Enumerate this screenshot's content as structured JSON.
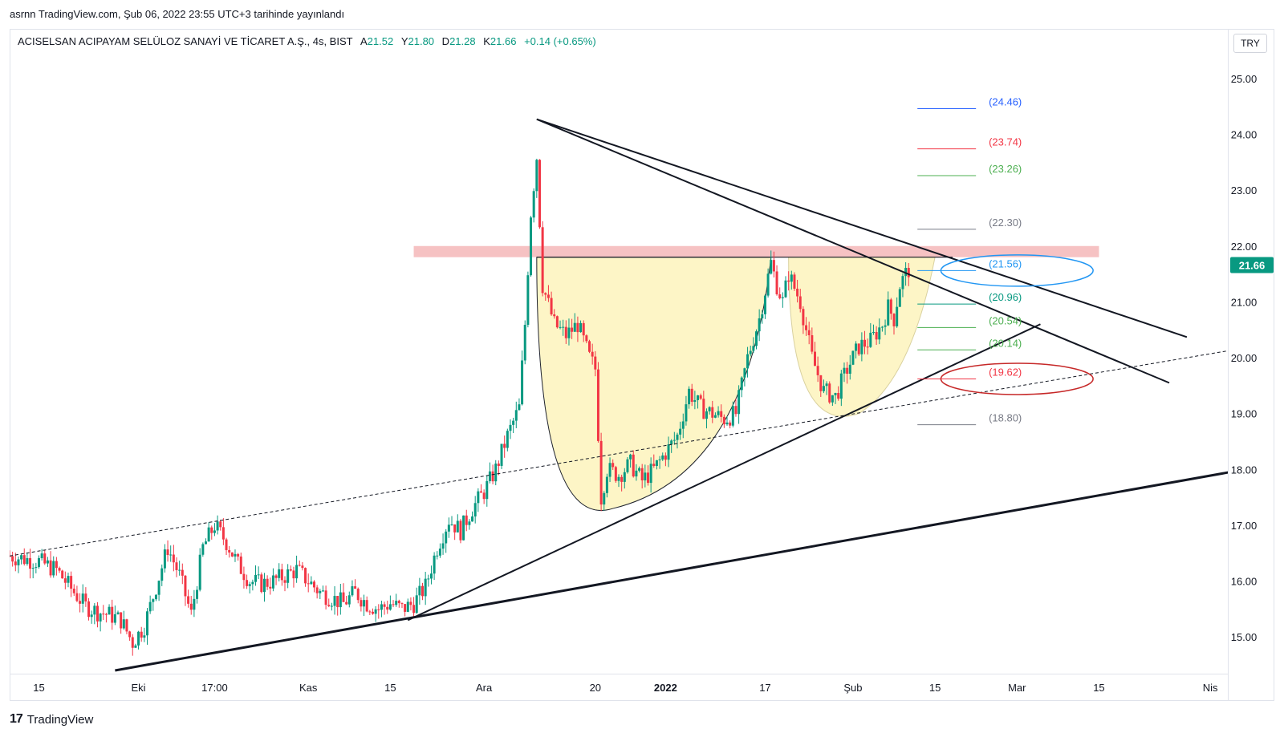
{
  "header": {
    "published": "asrnn TradingView.com, Şub 06, 2022 23:55 UTC+3 tarihinde yayınlandı"
  },
  "legend": {
    "symbol": "ACISELSAN ACIPAYAM SELÜLOZ SANAYİ VE TİCARET A.Ş., 4s, BIST",
    "open_label": "A",
    "open": "21.52",
    "high_label": "Y",
    "high": "21.80",
    "low_label": "D",
    "low": "21.28",
    "close_label": "K",
    "close": "21.66",
    "change": "+0.14 (+0.65%)"
  },
  "currency": "TRY",
  "footer": {
    "brand": "TradingView",
    "logo": "17"
  },
  "colors": {
    "up": "#089981",
    "down": "#f23645",
    "resistance_zone": "#f5b7b9",
    "pattern_fill": "#fdf5c4",
    "price_badge": "#089981",
    "level_blue": "#2962ff",
    "level_red": "#f23645",
    "level_green": "#4caf50",
    "level_gray": "#787b86",
    "ellipse_blue": "#2196f3",
    "ellipse_red": "#c62828"
  },
  "chart_data": {
    "type": "candlestick",
    "symbol": "ACISELSAN",
    "interval": "4s",
    "ylim": [
      14.4,
      25.4
    ],
    "y_ticks": [
      "25.00",
      "24.00",
      "23.00",
      "22.00",
      "21.00",
      "20.00",
      "19.00",
      "18.00",
      "17.00",
      "16.00",
      "15.00"
    ],
    "last_price": "21.66",
    "x_ticks": [
      {
        "t": 0,
        "label": "15"
      },
      {
        "t": 17,
        "label": "Eki"
      },
      {
        "t": 30,
        "label": "17:00"
      },
      {
        "t": 46,
        "label": "Kas"
      },
      {
        "t": 60,
        "label": "15"
      },
      {
        "t": 76,
        "label": "Ara"
      },
      {
        "t": 95,
        "label": "20"
      },
      {
        "t": 107,
        "label": "2022"
      },
      {
        "t": 124,
        "label": "17"
      },
      {
        "t": 139,
        "label": "Şub"
      },
      {
        "t": 153,
        "label": "15"
      },
      {
        "t": 167,
        "label": "Mar"
      },
      {
        "t": 181,
        "label": "15"
      },
      {
        "t": 200,
        "label": "Nis"
      }
    ],
    "x_range": [
      -5,
      203
    ],
    "price_path": [
      [
        -5,
        16.45
      ],
      [
        0,
        16.35
      ],
      [
        3,
        16.2
      ],
      [
        6,
        15.8
      ],
      [
        8,
        15.55
      ],
      [
        10,
        15.45
      ],
      [
        12,
        15.4
      ],
      [
        14,
        15.3
      ],
      [
        16,
        14.9
      ],
      [
        18,
        15.2
      ],
      [
        20,
        15.9
      ],
      [
        22,
        16.6
      ],
      [
        24,
        16.1
      ],
      [
        26,
        15.4
      ],
      [
        28,
        16.6
      ],
      [
        30,
        17.0
      ],
      [
        32,
        16.7
      ],
      [
        34,
        16.3
      ],
      [
        36,
        16.0
      ],
      [
        38,
        15.95
      ],
      [
        40,
        16.0
      ],
      [
        42,
        16.1
      ],
      [
        44,
        16.2
      ],
      [
        46,
        16.0
      ],
      [
        48,
        15.8
      ],
      [
        50,
        15.7
      ],
      [
        52,
        15.6
      ],
      [
        54,
        15.8
      ],
      [
        56,
        15.6
      ],
      [
        58,
        15.5
      ],
      [
        60,
        15.6
      ],
      [
        62,
        15.5
      ],
      [
        64,
        15.6
      ],
      [
        66,
        15.9
      ],
      [
        68,
        16.6
      ],
      [
        70,
        17.1
      ],
      [
        72,
        16.9
      ],
      [
        74,
        17.3
      ],
      [
        76,
        17.6
      ],
      [
        78,
        18.0
      ],
      [
        80,
        18.6
      ],
      [
        82,
        19.1
      ],
      [
        83,
        20.6
      ],
      [
        84,
        22.6
      ],
      [
        85,
        23.6
      ],
      [
        86,
        21.3
      ],
      [
        88,
        20.6
      ],
      [
        90,
        20.4
      ],
      [
        92,
        20.6
      ],
      [
        94,
        20.0
      ],
      [
        95,
        19.8
      ],
      [
        96,
        17.5
      ],
      [
        97,
        18.0
      ],
      [
        99,
        17.9
      ],
      [
        101,
        18.1
      ],
      [
        103,
        17.8
      ],
      [
        105,
        18.0
      ],
      [
        107,
        18.3
      ],
      [
        109,
        18.6
      ],
      [
        111,
        19.4
      ],
      [
        113,
        19.1
      ],
      [
        115,
        19.0
      ],
      [
        117,
        18.9
      ],
      [
        119,
        19.0
      ],
      [
        121,
        20.0
      ],
      [
        123,
        20.7
      ],
      [
        125,
        21.7
      ],
      [
        126,
        21.3
      ],
      [
        127,
        21.0
      ],
      [
        128,
        21.5
      ],
      [
        130,
        21.0
      ],
      [
        132,
        20.0
      ],
      [
        134,
        19.4
      ],
      [
        136,
        19.3
      ],
      [
        138,
        19.8
      ],
      [
        140,
        20.2
      ],
      [
        142,
        20.3
      ],
      [
        144,
        20.6
      ],
      [
        145,
        20.9
      ],
      [
        146,
        20.7
      ],
      [
        147,
        21.3
      ],
      [
        148,
        21.5
      ],
      [
        149,
        21.66
      ]
    ],
    "levels": [
      {
        "value": "24.46",
        "label": "(24.46)",
        "color": "#2962ff"
      },
      {
        "value": "23.74",
        "label": "(23.74)",
        "color": "#f23645"
      },
      {
        "value": "23.26",
        "label": "(23.26)",
        "color": "#4caf50"
      },
      {
        "value": "22.30",
        "label": "(22.30)",
        "color": "#787b86"
      },
      {
        "value": "21.56",
        "label": "(21.56)",
        "color": "#2196f3"
      },
      {
        "value": "20.96",
        "label": "(20.96)",
        "color": "#089981"
      },
      {
        "value": "20.54",
        "label": "(20.54)",
        "color": "#4caf50"
      },
      {
        "value": "20.14",
        "label": "(20.14)",
        "color": "#4caf50"
      },
      {
        "value": "19.62",
        "label": "(19.62)",
        "color": "#f23645"
      },
      {
        "value": "18.80",
        "label": "(18.80)",
        "color": "#787b86"
      }
    ],
    "level_line_t": [
      150,
      160
    ],
    "level_label_t": 165,
    "resistance_zone": {
      "t_start": 64,
      "t_end": 181,
      "y_low": 21.8,
      "y_high": 22.0
    },
    "neckline": {
      "t_start": 85,
      "t_end": 156,
      "y": 21.8
    },
    "trendlines": [
      {
        "name": "descending-trendline-upper",
        "p1": [
          85,
          24.27
        ],
        "p2": [
          196,
          20.37
        ],
        "width": 2
      },
      {
        "name": "descending-trendline-lower",
        "p1": [
          85,
          24.27
        ],
        "p2": [
          193,
          19.55
        ],
        "width": 2
      },
      {
        "name": "ascending-trendline-short",
        "p1": [
          63,
          15.3
        ],
        "p2": [
          171,
          20.6
        ],
        "width": 2
      },
      {
        "name": "ascending-trendline-long",
        "p1": [
          13,
          14.4
        ],
        "p2": [
          214,
          18.15
        ],
        "width": 3
      }
    ],
    "dashed_trendline": {
      "p1": [
        -5,
        16.45
      ],
      "p2": [
        213,
        20.3
      ]
    },
    "cup": {
      "left": [
        85,
        21.8
      ],
      "bottom": [
        98,
        17.3
      ],
      "right": [
        125,
        21.8
      ]
    },
    "handle": {
      "left": [
        128,
        21.8
      ],
      "bottom": [
        140,
        19.0
      ],
      "right": [
        153,
        21.8
      ]
    },
    "ellipses": [
      {
        "name": "ellipse-level-21-56",
        "t": 167,
        "y": 21.56,
        "rt": 13,
        "ry": 0.28,
        "color": "#2196f3"
      },
      {
        "name": "ellipse-level-19-62",
        "t": 167,
        "y": 19.62,
        "rt": 13,
        "ry": 0.28,
        "color": "#c62828"
      }
    ]
  }
}
